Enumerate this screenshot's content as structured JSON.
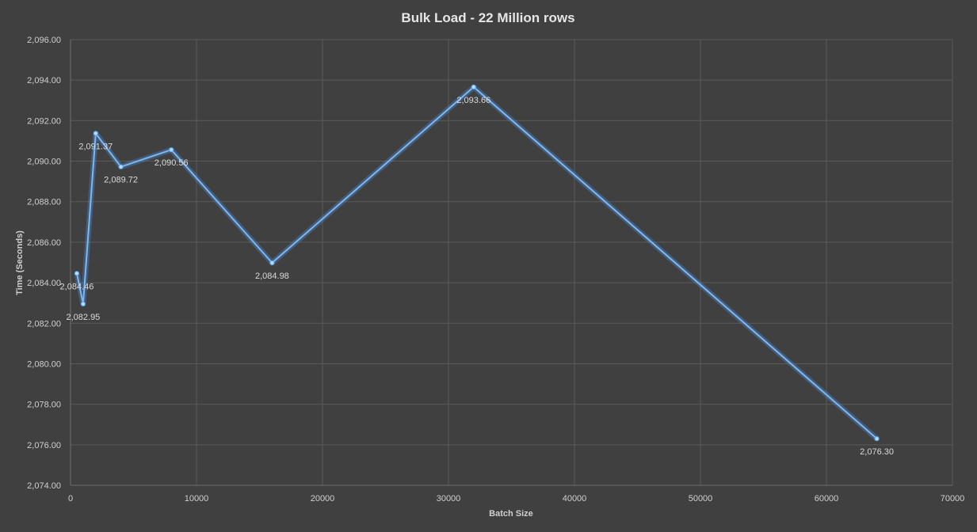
{
  "chart_data": {
    "type": "line",
    "title": "Bulk Load - 22 Million rows",
    "xlabel": "Batch Size",
    "ylabel": "Time (Seconds)",
    "xlim": [
      0,
      70000
    ],
    "ylim": [
      2074,
      2096
    ],
    "x_ticks": [
      0,
      10000,
      20000,
      30000,
      40000,
      50000,
      60000,
      70000
    ],
    "x_tick_labels": [
      "0",
      "10000",
      "20000",
      "30000",
      "40000",
      "50000",
      "60000",
      "70000"
    ],
    "y_ticks": [
      2074,
      2076,
      2078,
      2080,
      2082,
      2084,
      2086,
      2088,
      2090,
      2092,
      2094,
      2096
    ],
    "y_tick_labels": [
      "2,074.00",
      "2,076.00",
      "2,078.00",
      "2,080.00",
      "2,082.00",
      "2,084.00",
      "2,086.00",
      "2,088.00",
      "2,090.00",
      "2,092.00",
      "2,094.00",
      "2,096.00"
    ],
    "grid": true,
    "series_color": "#7db8f0",
    "series": [
      {
        "x": [
          500,
          1000,
          2000,
          4000,
          8000,
          16000,
          32000,
          64000
        ],
        "values": [
          2084.46,
          2082.95,
          2091.37,
          2089.72,
          2090.56,
          2084.98,
          2093.66,
          2076.3
        ],
        "labels": [
          "2,084.46",
          "2,082.95",
          "2,091.37",
          "2,089.72",
          "2,090.56",
          "2,084.98",
          "2,093.66",
          "2,076.30"
        ]
      }
    ]
  }
}
